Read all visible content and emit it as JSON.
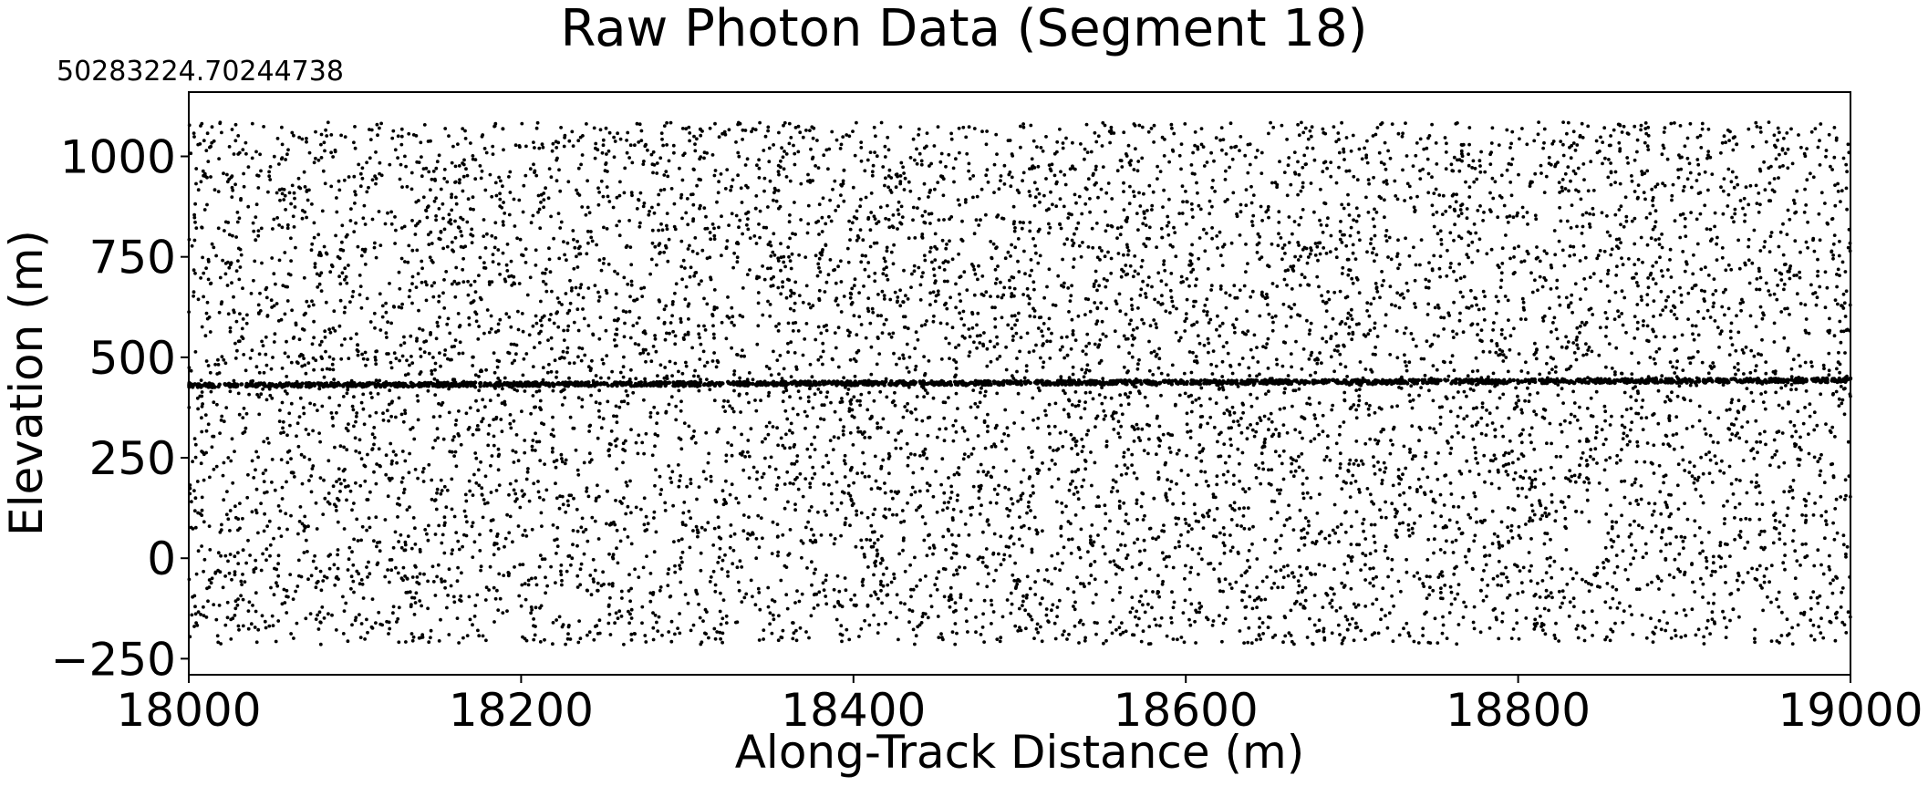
{
  "chart_data": {
    "type": "scatter",
    "title": "Raw Photon Data (Segment 18)",
    "xlabel": "Along-Track Distance (m)",
    "ylabel": "Elevation (m)",
    "offset_text": "50283224.70244738",
    "xlim": [
      18000,
      19000
    ],
    "ylim": [
      -290,
      1160
    ],
    "x_ticks": [
      18000,
      18200,
      18400,
      18600,
      18800,
      19000
    ],
    "x_tick_labels": [
      "18000",
      "18200",
      "18400",
      "18600",
      "18800",
      "19000"
    ],
    "y_ticks": [
      -250,
      0,
      250,
      500,
      750,
      1000
    ],
    "y_tick_labels": [
      "−250",
      "0",
      "250",
      "500",
      "750",
      "1000"
    ],
    "grid": false,
    "legend": "none",
    "marker_color": "#000000",
    "series": [
      {
        "kind": "noise",
        "point_count": 9000,
        "x_range": [
          18000,
          19000
        ],
        "y_range": [
          -215,
          1085
        ],
        "description_values": "uniformly scattered background photons"
      },
      {
        "kind": "surface",
        "point_count": 2000,
        "x_range": [
          18000,
          19000
        ],
        "y_start": 430,
        "y_end": 443
      }
    ]
  }
}
